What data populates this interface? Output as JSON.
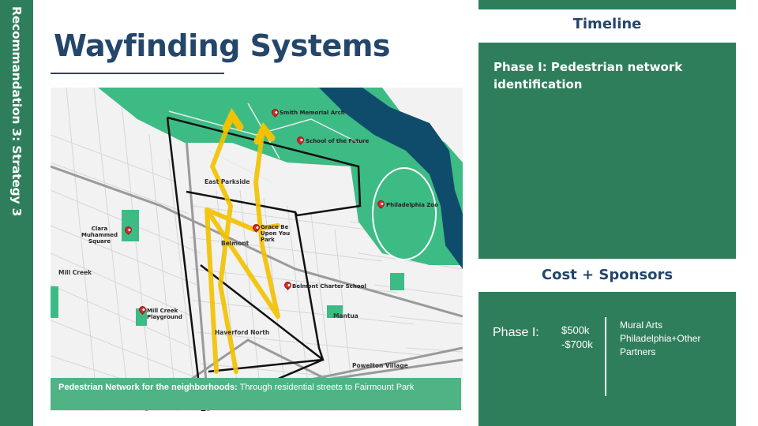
{
  "sidebar": {
    "label": "Recommandation 3: Strategy 3"
  },
  "title": "Wayfinding Systems",
  "map": {
    "places": {
      "smith_arch": "Smith Memorial Arch",
      "school_future": "School of the Future",
      "philly_zoo": "Philadelphia Zoo",
      "clara": "Clara Muhammed Square",
      "grace": "Grace Be Upon You Park",
      "belmont_school": "Belmont Charter School",
      "mill_creek_pg": "Mill Creek Playground"
    },
    "streets": {
      "east_parkside": "East Parkside",
      "belmont": "Belmont",
      "mill_creek": "Mill Creek",
      "mantua": "Mantua",
      "haverford_north": "Haverford North",
      "powelton": "Powelton Village"
    }
  },
  "caption": {
    "bold": "Pedestrian Network for the neighborhoods:",
    "rest": " Through residential  streets  to Fairmount Park"
  },
  "timeline": {
    "heading": "Timeline",
    "phase_text": "Phase I: Pedestrian network identification"
  },
  "cost": {
    "heading": "Cost + Sponsors",
    "phase_label": "Phase I:",
    "amount_line1": "$500k",
    "amount_line2": "-$700k",
    "sponsor_line1": "Mural Arts",
    "sponsor_line2": "Philadelphia+Other",
    "sponsor_line3": "Partners"
  },
  "colors": {
    "green_dark": "#2f7e5b",
    "green_park": "#3dbb85",
    "river": "#0f4c6b",
    "route": "#f2c200",
    "title_navy": "#24466a"
  }
}
